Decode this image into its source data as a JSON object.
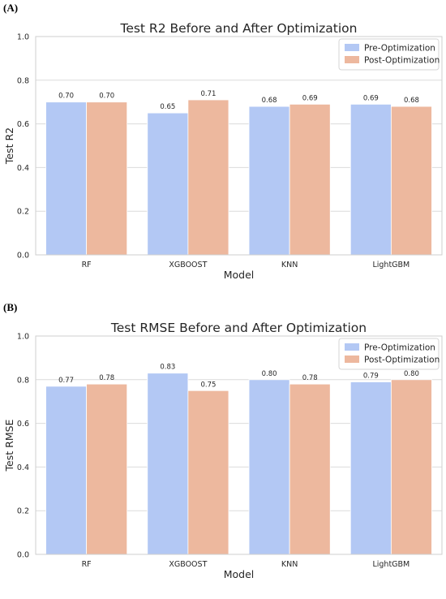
{
  "panels": [
    {
      "label": "(A)"
    },
    {
      "label": "(B)"
    }
  ],
  "colors": {
    "pre": "#b3c8f4",
    "post": "#edb89e"
  },
  "chart_data": [
    {
      "type": "bar",
      "title": "Test R2 Before and After Optimization",
      "xlabel": "Model",
      "ylabel": "Test R2",
      "ylim": [
        0,
        1.0
      ],
      "yticks": [
        "0.0",
        "0.2",
        "0.4",
        "0.6",
        "0.8",
        "1.0"
      ],
      "grid": true,
      "legend": "top-right",
      "categories": [
        "RF",
        "XGBOOST",
        "KNN",
        "LightGBM"
      ],
      "series": [
        {
          "name": "Pre-Optimization",
          "values": [
            0.7,
            0.65,
            0.68,
            0.69
          ],
          "labels": [
            "0.70",
            "0.65",
            "0.68",
            "0.69"
          ]
        },
        {
          "name": "Post-Optimization",
          "values": [
            0.7,
            0.71,
            0.69,
            0.68
          ],
          "labels": [
            "0.70",
            "0.71",
            "0.69",
            "0.68"
          ]
        }
      ]
    },
    {
      "type": "bar",
      "title": "Test RMSE Before and After Optimization",
      "xlabel": "Model",
      "ylabel": "Test RMSE",
      "ylim": [
        0,
        1.0
      ],
      "yticks": [
        "0.0",
        "0.2",
        "0.4",
        "0.6",
        "0.8",
        "1.0"
      ],
      "grid": true,
      "legend": "top-right",
      "categories": [
        "RF",
        "XGBOOST",
        "KNN",
        "LightGBM"
      ],
      "series": [
        {
          "name": "Pre-Optimization",
          "values": [
            0.77,
            0.83,
            0.8,
            0.79
          ],
          "labels": [
            "0.77",
            "0.83",
            "0.80",
            "0.79"
          ]
        },
        {
          "name": "Post-Optimization",
          "values": [
            0.78,
            0.75,
            0.78,
            0.8
          ],
          "labels": [
            "0.78",
            "0.75",
            "0.78",
            "0.80"
          ]
        }
      ]
    }
  ]
}
